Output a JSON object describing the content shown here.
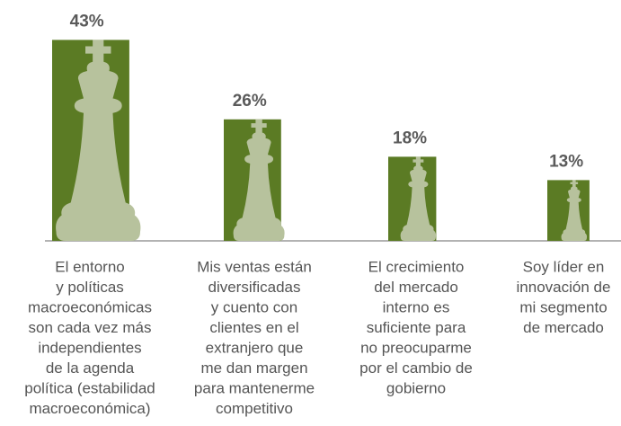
{
  "chart_data": {
    "type": "bar",
    "categories": [
      [
        "El entorno",
        "y políticas",
        "macroeconómicas",
        "son cada vez más",
        "independientes",
        "de la agenda",
        "política (estabilidad",
        "macroeconómica)"
      ],
      [
        "Mis ventas están",
        "diversificadas",
        "y cuento con",
        "clientes en el",
        "extranjero que",
        "me dan margen",
        "para mantenerme",
        "competitivo"
      ],
      [
        "El crecimiento",
        "del mercado",
        "interno es",
        "suficiente para",
        "no preocuparme",
        "por el cambio de",
        "gobierno"
      ],
      [
        "Soy líder en",
        "innovación de",
        "mi segmento",
        "de mercado"
      ]
    ],
    "values": [
      43,
      26,
      18,
      13
    ],
    "value_labels": [
      "43%",
      "26%",
      "18%",
      "13%"
    ],
    "color": "#5b7b24",
    "piece_color": "#b7c29d",
    "ylim": [
      0,
      50
    ]
  }
}
